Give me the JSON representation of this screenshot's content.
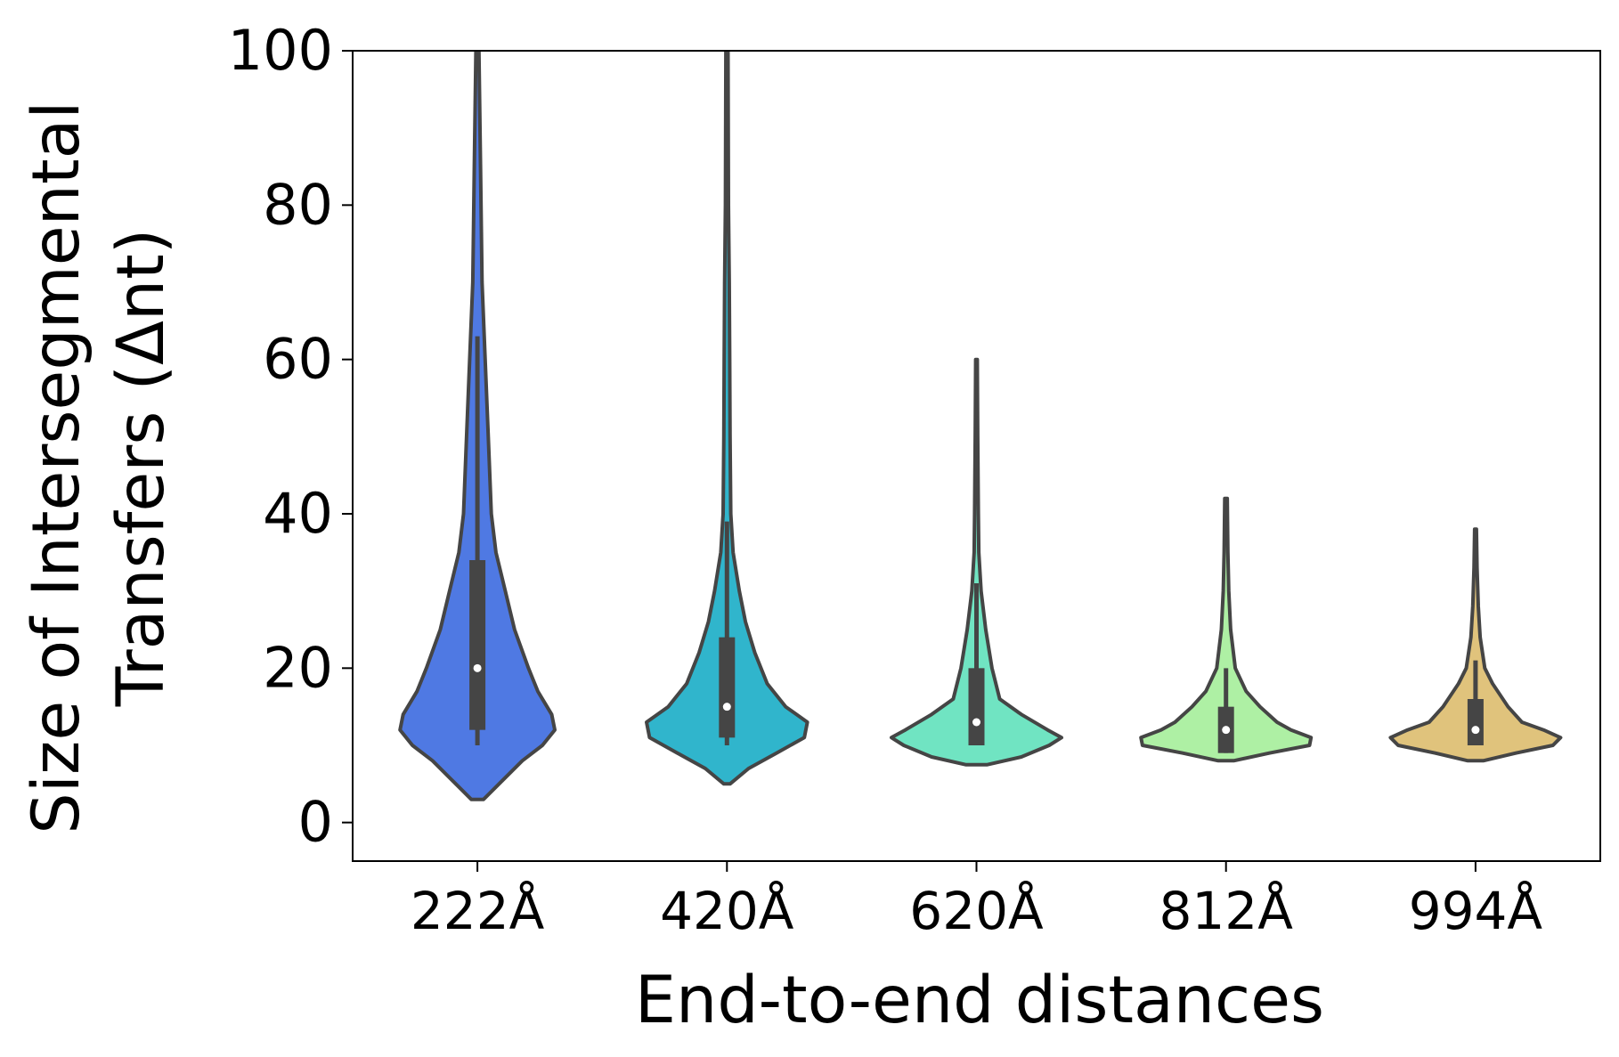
{
  "chart_data": {
    "type": "violin",
    "xlabel": "End-to-end distances",
    "ylabel_line1": "Size of Intersegmental",
    "ylabel_line2": "Transfers (Δnt)",
    "ylim": [
      -5,
      100
    ],
    "yticks": [
      0,
      20,
      40,
      60,
      80,
      100
    ],
    "grid": false,
    "categories": [
      "222Å",
      "420Å",
      "620Å",
      "812Å",
      "994Å"
    ],
    "colors": [
      "#4f79e3",
      "#30b5cc",
      "#70e4c2",
      "#aef0a4",
      "#e0c37c"
    ],
    "series": [
      {
        "label": "222Å",
        "median": 20,
        "q1": 12,
        "q3": 34,
        "whisker_low": 10,
        "whisker_high": 63,
        "density_profile": [
          [
            3,
            0.04
          ],
          [
            5,
            0.14
          ],
          [
            8,
            0.29
          ],
          [
            10,
            0.42
          ],
          [
            12,
            0.5
          ],
          [
            14,
            0.48
          ],
          [
            17,
            0.39
          ],
          [
            20,
            0.33
          ],
          [
            25,
            0.24
          ],
          [
            30,
            0.18
          ],
          [
            35,
            0.12
          ],
          [
            40,
            0.09
          ],
          [
            50,
            0.07
          ],
          [
            60,
            0.05
          ],
          [
            70,
            0.03
          ],
          [
            85,
            0.02
          ],
          [
            100,
            0.01
          ]
        ]
      },
      {
        "label": "420Å",
        "median": 15,
        "q1": 11,
        "q3": 24,
        "whisker_low": 10,
        "whisker_high": 39,
        "density_profile": [
          [
            5,
            0.02
          ],
          [
            7,
            0.14
          ],
          [
            9,
            0.32
          ],
          [
            11,
            0.5
          ],
          [
            13,
            0.52
          ],
          [
            15,
            0.38
          ],
          [
            18,
            0.26
          ],
          [
            22,
            0.18
          ],
          [
            26,
            0.12
          ],
          [
            30,
            0.08
          ],
          [
            35,
            0.04
          ],
          [
            40,
            0.025
          ],
          [
            50,
            0.02
          ],
          [
            60,
            0.018
          ],
          [
            70,
            0.015
          ],
          [
            80,
            0.01
          ],
          [
            100,
            0.007
          ]
        ]
      },
      {
        "label": "620Å",
        "median": 13,
        "q1": 10,
        "q3": 20,
        "whisker_low": 10,
        "whisker_high": 31,
        "density_profile": [
          [
            7.5,
            0.07
          ],
          [
            8.5,
            0.29
          ],
          [
            10,
            0.47
          ],
          [
            11,
            0.55
          ],
          [
            12,
            0.46
          ],
          [
            14,
            0.29
          ],
          [
            16,
            0.15
          ],
          [
            20,
            0.1
          ],
          [
            25,
            0.06
          ],
          [
            30,
            0.03
          ],
          [
            35,
            0.015
          ],
          [
            40,
            0.012
          ],
          [
            50,
            0.008
          ],
          [
            60,
            0.005
          ]
        ]
      },
      {
        "label": "812Å",
        "median": 12,
        "q1": 9,
        "q3": 15,
        "whisker_low": 9,
        "whisker_high": 20,
        "density_profile": [
          [
            8,
            0.05
          ],
          [
            9,
            0.28
          ],
          [
            10,
            0.54
          ],
          [
            11,
            0.55
          ],
          [
            12,
            0.42
          ],
          [
            13,
            0.33
          ],
          [
            15,
            0.22
          ],
          [
            17,
            0.13
          ],
          [
            20,
            0.06
          ],
          [
            25,
            0.03
          ],
          [
            30,
            0.018
          ],
          [
            35,
            0.012
          ],
          [
            42,
            0.008
          ]
        ]
      },
      {
        "label": "994Å",
        "median": 12,
        "q1": 10,
        "q3": 16,
        "whisker_low": 10,
        "whisker_high": 21,
        "density_profile": [
          [
            8,
            0.05
          ],
          [
            9,
            0.26
          ],
          [
            10,
            0.5
          ],
          [
            11,
            0.55
          ],
          [
            12,
            0.44
          ],
          [
            13,
            0.3
          ],
          [
            15,
            0.21
          ],
          [
            18,
            0.11
          ],
          [
            20,
            0.06
          ],
          [
            24,
            0.03
          ],
          [
            28,
            0.018
          ],
          [
            33,
            0.01
          ],
          [
            38,
            0.006
          ]
        ]
      }
    ]
  }
}
